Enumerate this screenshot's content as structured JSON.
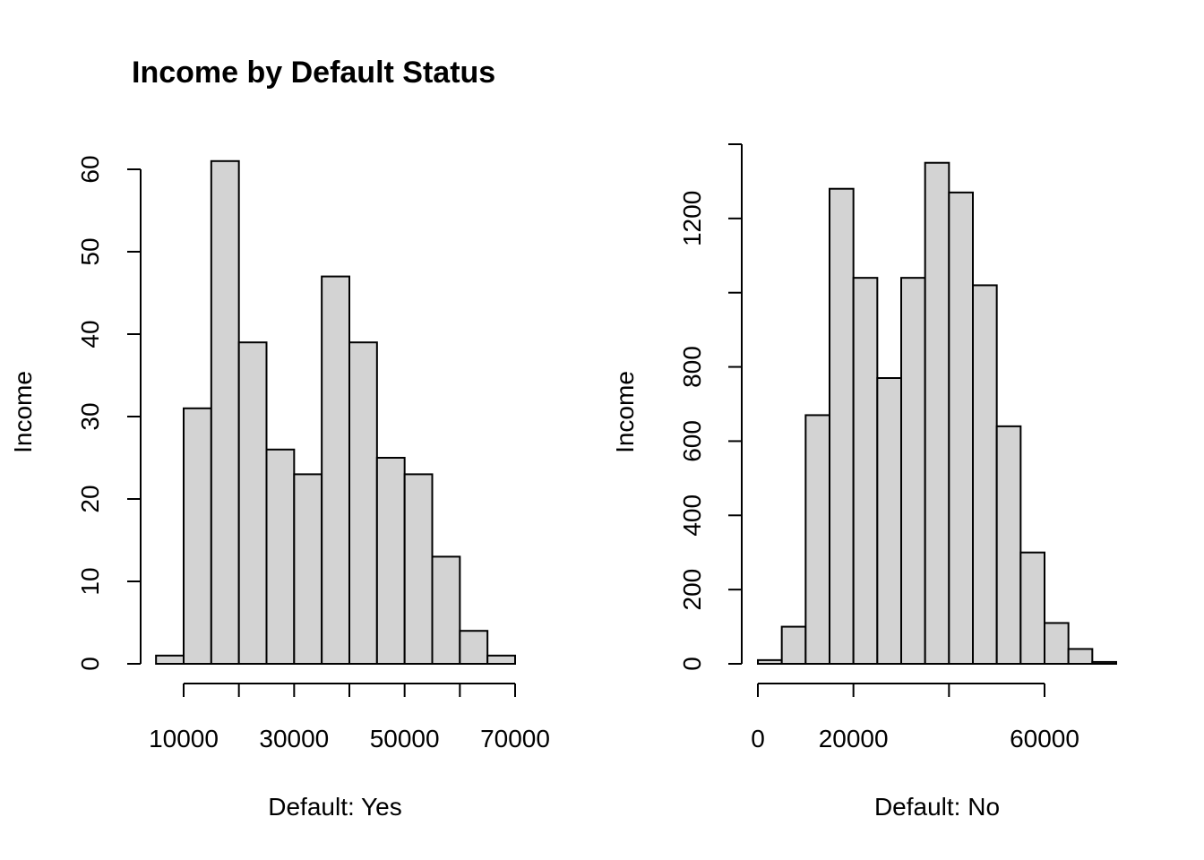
{
  "chart_data": [
    {
      "type": "bar",
      "title": "Income by Default Status",
      "xlabel": "Default: Yes",
      "ylabel": "Income",
      "bin_edges": [
        5000,
        10000,
        15000,
        20000,
        25000,
        30000,
        35000,
        40000,
        45000,
        50000,
        55000,
        60000,
        65000,
        70000
      ],
      "values": [
        1,
        31,
        61,
        39,
        26,
        23,
        47,
        39,
        25,
        23,
        13,
        4,
        1
      ],
      "xlim": [
        10000,
        70000
      ],
      "xticks": [
        10000,
        20000,
        30000,
        40000,
        50000,
        60000,
        70000
      ],
      "xtick_labels": [
        "10000",
        "",
        "30000",
        "",
        "50000",
        "",
        "70000"
      ],
      "ylim": [
        0,
        60
      ],
      "yticks": [
        0,
        10,
        20,
        30,
        40,
        50,
        60
      ],
      "ytick_labels": [
        "0",
        "10",
        "20",
        "30",
        "40",
        "50",
        "60"
      ],
      "grid": false
    },
    {
      "type": "bar",
      "title": "",
      "xlabel": "Default: No",
      "ylabel": "Income",
      "bin_edges": [
        0,
        5000,
        10000,
        15000,
        20000,
        25000,
        30000,
        35000,
        40000,
        45000,
        50000,
        55000,
        60000,
        65000,
        70000,
        75000
      ],
      "values": [
        10,
        100,
        670,
        1280,
        1040,
        770,
        1040,
        1350,
        1270,
        1020,
        640,
        300,
        110,
        40,
        5
      ],
      "xlim": [
        0,
        60000
      ],
      "xticks": [
        0,
        20000,
        40000,
        60000
      ],
      "xtick_labels": [
        "0",
        "20000",
        "",
        "60000"
      ],
      "ylim": [
        0,
        1400
      ],
      "yticks": [
        0,
        200,
        400,
        600,
        800,
        1000,
        1200,
        1400
      ],
      "ytick_labels": [
        "0",
        "200",
        "400",
        "600",
        "800",
        "",
        "1200",
        ""
      ],
      "grid": false
    }
  ]
}
